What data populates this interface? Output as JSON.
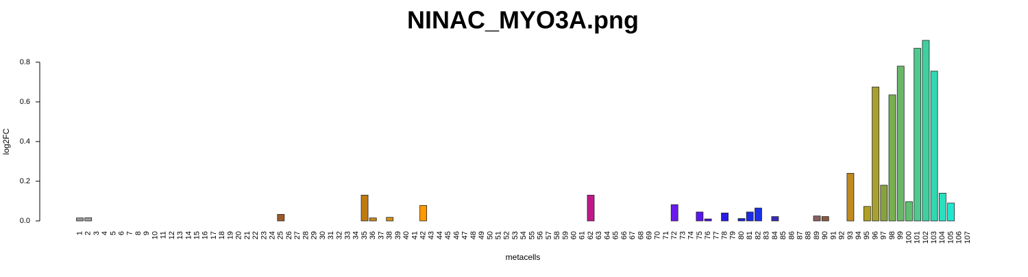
{
  "chart_data": {
    "type": "bar",
    "title": "NINAC_MYO3A.png",
    "x_label": "metacells",
    "y_label": "log2FC",
    "categories": [
      "1",
      "2",
      "3",
      "4",
      "5",
      "6",
      "7",
      "8",
      "9",
      "10",
      "11",
      "12",
      "13",
      "14",
      "15",
      "16",
      "17",
      "18",
      "19",
      "20",
      "21",
      "22",
      "23",
      "24",
      "25",
      "26",
      "27",
      "28",
      "29",
      "30",
      "31",
      "32",
      "33",
      "34",
      "35",
      "36",
      "37",
      "38",
      "39",
      "40",
      "41",
      "42",
      "43",
      "44",
      "45",
      "46",
      "47",
      "48",
      "49",
      "50",
      "51",
      "52",
      "53",
      "54",
      "55",
      "56",
      "57",
      "58",
      "59",
      "60",
      "61",
      "62",
      "63",
      "64",
      "65",
      "66",
      "67",
      "68",
      "69",
      "70",
      "71",
      "72",
      "73",
      "74",
      "75",
      "76",
      "77",
      "78",
      "79",
      "80",
      "81",
      "82",
      "83",
      "84",
      "85",
      "86",
      "87",
      "88",
      "89",
      "90",
      "91",
      "92",
      "93",
      "94",
      "95",
      "96",
      "97",
      "98",
      "99",
      "100",
      "101",
      "102",
      "103",
      "104",
      "105",
      "106",
      "107"
    ],
    "values": [
      0.015,
      0.016,
      0,
      0,
      0,
      0,
      0,
      0,
      0,
      0,
      0,
      0,
      0,
      0,
      0,
      0,
      0,
      0,
      0,
      0,
      0,
      0,
      0,
      0,
      0.033,
      0,
      0,
      0,
      0,
      0,
      0,
      0,
      0,
      0,
      0.13,
      0.015,
      0,
      0.018,
      0,
      0,
      0,
      0.078,
      0,
      0,
      0,
      0,
      0,
      0,
      0,
      0,
      0,
      0,
      0,
      0,
      0,
      0,
      0,
      0,
      0,
      0,
      0,
      0.13,
      0,
      0,
      0,
      0,
      0,
      0,
      0,
      0,
      0,
      0.082,
      0,
      0,
      0.045,
      0.01,
      0,
      0.04,
      0,
      0.012,
      0.045,
      0.065,
      0,
      0.022,
      0,
      0,
      0,
      0,
      0.025,
      0.022,
      0,
      0,
      0.24,
      0,
      0.073,
      0.675,
      0.18,
      0.635,
      0.78,
      0.097,
      0.87,
      0.91,
      0.755,
      0.14,
      0.09,
      0,
      0
    ],
    "colors": [
      "#999999",
      "#a0a0a0",
      "#7f7f7f",
      "#7f7f7f",
      "#7f7f7f",
      "#7f7f7f",
      "#7f7f7f",
      "#7f7f7f",
      "#7f7f7f",
      "#7f7f7f",
      "#7f7f7f",
      "#7f7f7f",
      "#7f7f7f",
      "#7f7f7f",
      "#7f7f7f",
      "#7f7f7f",
      "#7f7f7f",
      "#7f7f7f",
      "#7f7f7f",
      "#7f7f7f",
      "#7f7f7f",
      "#7f7f7f",
      "#7f7f7f",
      "#7f7f7f",
      "#9c5a2a",
      "#7f7f7f",
      "#7f7f7f",
      "#7f7f7f",
      "#7f7f7f",
      "#7f7f7f",
      "#7f7f7f",
      "#7f7f7f",
      "#7f7f7f",
      "#7f7f7f",
      "#c07a10",
      "#c88a18",
      "#7f7f7f",
      "#d09018",
      "#7f7f7f",
      "#7f7f7f",
      "#7f7f7f",
      "#ff9900",
      "#7f7f7f",
      "#7f7f7f",
      "#7f7f7f",
      "#7f7f7f",
      "#7f7f7f",
      "#7f7f7f",
      "#7f7f7f",
      "#7f7f7f",
      "#7f7f7f",
      "#7f7f7f",
      "#7f7f7f",
      "#7f7f7f",
      "#7f7f7f",
      "#7f7f7f",
      "#7f7f7f",
      "#7f7f7f",
      "#7f7f7f",
      "#7f7f7f",
      "#7f7f7f",
      "#c0188a",
      "#7f7f7f",
      "#7f7f7f",
      "#7f7f7f",
      "#7f7f7f",
      "#7f7f7f",
      "#7f7f7f",
      "#7f7f7f",
      "#7f7f7f",
      "#7f7f7f",
      "#6a1aee",
      "#7f7f7f",
      "#7f7f7f",
      "#5a16ee",
      "#4a16e8",
      "#7f7f7f",
      "#2a1ae8",
      "#7f7f7f",
      "#1a22e0",
      "#1a2ae8",
      "#1a30e8",
      "#7f7f7f",
      "#3a2ab8",
      "#7f7f7f",
      "#7f7f7f",
      "#7f7f7f",
      "#7f7f7f",
      "#8a6060",
      "#8a5a40",
      "#7f7f7f",
      "#7f7f7f",
      "#c08a20",
      "#7f7f7f",
      "#b0a020",
      "#a8a030",
      "#88a040",
      "#78b050",
      "#68b868",
      "#60c070",
      "#50c890",
      "#40d0a0",
      "#30d8b0",
      "#28e0c0",
      "#20e8d0",
      "#7f7f7f",
      "#7f7f7f"
    ],
    "ylim": [
      0,
      0.91
    ],
    "yticks": [
      {
        "value": 0,
        "label": "0.0"
      },
      0.2,
      0.4,
      0.6,
      0.8
    ]
  }
}
